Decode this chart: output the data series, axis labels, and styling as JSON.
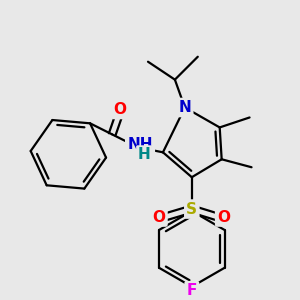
{
  "bg_color": "#e8e8e8",
  "bond_color": "#000000",
  "bond_width": 1.6,
  "atom_colors": {
    "N": "#0000cc",
    "O": "#ff0000",
    "S": "#aaaa00",
    "F": "#ee00ee",
    "H": "#008888",
    "C": "#000000"
  },
  "font_size_atom": 11,
  "font_size_small": 9.5
}
